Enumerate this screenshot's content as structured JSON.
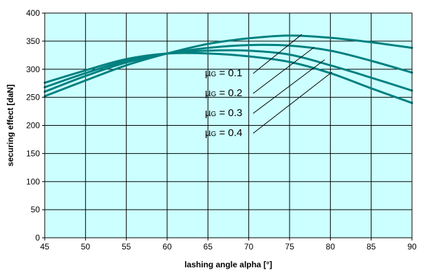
{
  "chart_data": {
    "type": "line",
    "title": "",
    "xlabel": "lashing angle alpha [°]",
    "ylabel": "securing effect [daN]",
    "xlim": [
      45,
      90
    ],
    "ylim": [
      0,
      400
    ],
    "x_ticks": [
      "45",
      "50",
      "55",
      "60",
      "65",
      "70",
      "75",
      "80",
      "85",
      "90"
    ],
    "y_ticks": [
      "0",
      "50",
      "100",
      "150",
      "200",
      "250",
      "300",
      "350",
      "400"
    ],
    "grid": true,
    "plot_background": "#CCFFFF",
    "line_color": "#008080",
    "x": [
      45,
      50,
      55,
      60,
      65,
      70,
      75,
      80,
      85,
      90
    ],
    "series": [
      {
        "label_main": "µ",
        "label_sub": "G",
        "label_value": " = 0.1",
        "values": [
          252,
          280,
          307,
          328,
          345,
          355,
          360,
          356,
          348,
          338
        ],
        "label_anchor": [
          76.5,
          362
        ]
      },
      {
        "label_main": "µ",
        "label_sub": "G",
        "label_value": " = 0.2",
        "values": [
          260,
          288,
          312,
          328,
          338,
          343,
          342,
          333,
          315,
          294
        ],
        "label_anchor": [
          78,
          339
        ]
      },
      {
        "label_main": "µ",
        "label_sub": "G",
        "label_value": " = 0.3",
        "values": [
          268,
          293,
          315,
          328,
          333,
          333,
          326,
          307,
          285,
          262
        ],
        "label_anchor": [
          79.3,
          317
        ]
      },
      {
        "label_main": "µ",
        "label_sub": "G",
        "label_value": " = 0.4",
        "values": [
          276,
          298,
          318,
          328,
          328,
          323,
          313,
          293,
          266,
          240
        ],
        "label_anchor": [
          80.2,
          295
        ]
      }
    ]
  }
}
